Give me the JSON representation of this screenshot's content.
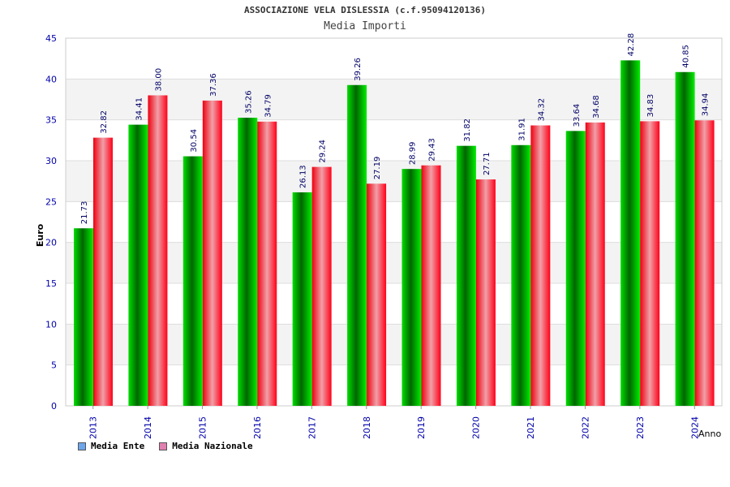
{
  "colors": {
    "ente": "#00c000",
    "nazionale": "#ff2030",
    "tick_text": "#0000aa",
    "value_text": "#000066",
    "legend_ente": "#6ea6ea",
    "legend_nazionale": "#e080b0"
  },
  "chart_data": {
    "type": "bar",
    "title": "ASSOCIAZIONE VELA DISLESSIA (c.f.95094120136)",
    "subtitle": "Media Importi",
    "xlabel": "Anno",
    "ylabel": "Euro",
    "ylim": [
      0,
      45
    ],
    "yticks": [
      0,
      5,
      10,
      15,
      20,
      25,
      30,
      35,
      40,
      45
    ],
    "categories": [
      "2013",
      "2014",
      "2015",
      "2016",
      "2017",
      "2018",
      "2019",
      "2020",
      "2021",
      "2022",
      "2023",
      "2024"
    ],
    "series": [
      {
        "name": "Media Ente",
        "values": [
          21.73,
          34.41,
          30.54,
          35.26,
          26.13,
          39.26,
          28.99,
          31.82,
          31.91,
          33.64,
          42.28,
          40.85
        ],
        "labels": [
          "21.73",
          "34.41",
          "30.54",
          "35.26",
          "26.13",
          "39.26",
          "28.99",
          "31.82",
          "31.91",
          "33.64",
          "42.28",
          "40.85"
        ]
      },
      {
        "name": "Media Nazionale",
        "values": [
          32.82,
          38.0,
          37.36,
          34.79,
          29.24,
          27.19,
          29.43,
          27.71,
          34.32,
          34.68,
          34.83,
          34.94
        ],
        "labels": [
          "32.82",
          "38.00",
          "37.36",
          "34.79",
          "29.24",
          "27.19",
          "29.43",
          "27.71",
          "34.32",
          "34.68",
          "34.83",
          "34.94"
        ]
      }
    ],
    "grid": true,
    "legend": "bottom-left"
  }
}
